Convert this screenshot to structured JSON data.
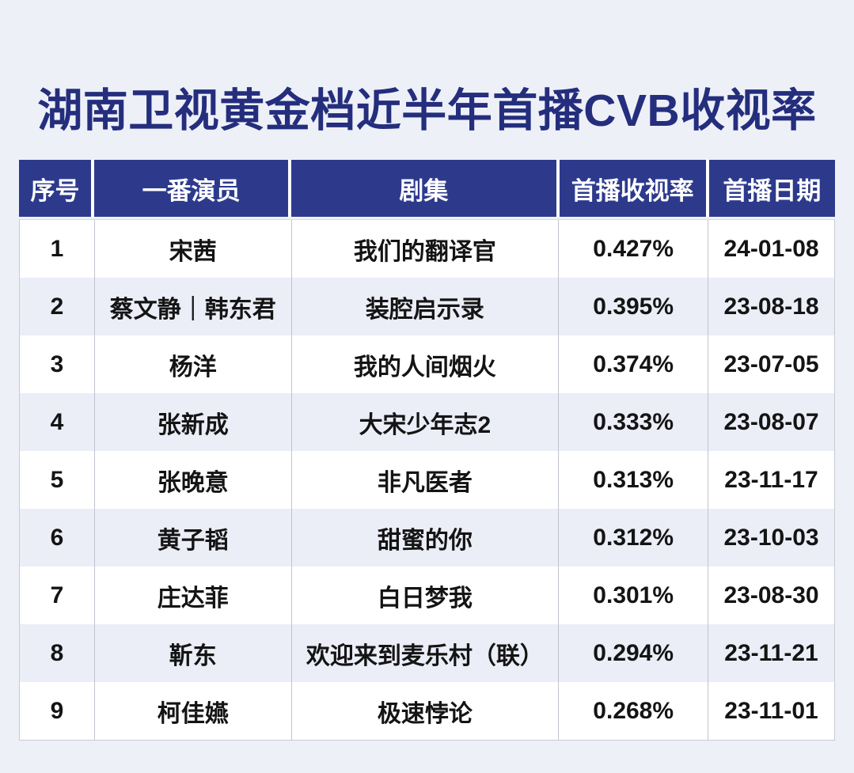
{
  "title": {
    "text": "湖南卫视黄金档近半年首播CVB收视率"
  },
  "table": {
    "headers": {
      "rank": "序号",
      "actor": "一番演员",
      "drama": "剧集",
      "rating": "首播收视率",
      "date": "首播日期"
    },
    "rows": [
      {
        "rank": "1",
        "actor": "宋茜",
        "drama": "我们的翻译官",
        "rating": "0.427%",
        "date": "24-01-08"
      },
      {
        "rank": "2",
        "actor": "蔡文静｜韩东君",
        "drama": "装腔启示录",
        "rating": "0.395%",
        "date": "23-08-18"
      },
      {
        "rank": "3",
        "actor": "杨洋",
        "drama": "我的人间烟火",
        "rating": "0.374%",
        "date": "23-07-05"
      },
      {
        "rank": "4",
        "actor": "张新成",
        "drama": "大宋少年志2",
        "rating": "0.333%",
        "date": "23-08-07"
      },
      {
        "rank": "5",
        "actor": "张晚意",
        "drama": "非凡医者",
        "rating": "0.313%",
        "date": "23-11-17"
      },
      {
        "rank": "6",
        "actor": "黄子韬",
        "drama": "甜蜜的你",
        "rating": "0.312%",
        "date": "23-10-03"
      },
      {
        "rank": "7",
        "actor": "庄达菲",
        "drama": "白日梦我",
        "rating": "0.301%",
        "date": "23-08-30"
      },
      {
        "rank": "8",
        "actor": "靳东",
        "drama": "欢迎来到麦乐村（联）",
        "rating": "0.294%",
        "date": "23-11-21"
      },
      {
        "rank": "9",
        "actor": "柯佳嬿",
        "drama": "极速悖论",
        "rating": "0.268%",
        "date": "23-11-01"
      }
    ]
  },
  "colors": {
    "page_bg": "#eef0f8",
    "title_text": "#242e7d",
    "header_bg": "#2d3a8c",
    "header_text": "#ffffff",
    "row_bg": "#ffffff",
    "row_alt_bg": "#ebedf7",
    "body_text": "#141414",
    "border": "#c2c3ce"
  },
  "chart_data": {
    "type": "table",
    "title": "湖南卫视黄金档近半年首播CVB收视率",
    "columns": [
      "序号",
      "一番演员",
      "剧集",
      "首播收视率",
      "首播日期"
    ],
    "rows": [
      [
        "1",
        "宋茜",
        "我们的翻译官",
        "0.427%",
        "24-01-08"
      ],
      [
        "2",
        "蔡文静｜韩东君",
        "装腔启示录",
        "0.395%",
        "23-08-18"
      ],
      [
        "3",
        "杨洋",
        "我的人间烟火",
        "0.374%",
        "23-07-05"
      ],
      [
        "4",
        "张新成",
        "大宋少年志2",
        "0.333%",
        "23-08-07"
      ],
      [
        "5",
        "张晚意",
        "非凡医者",
        "0.313%",
        "23-11-17"
      ],
      [
        "6",
        "黄子韬",
        "甜蜜的你",
        "0.312%",
        "23-10-03"
      ],
      [
        "7",
        "庄达菲",
        "白日梦我",
        "0.301%",
        "23-08-30"
      ],
      [
        "8",
        "靳东",
        "欢迎来到麦乐村（联）",
        "0.294%",
        "23-11-21"
      ],
      [
        "9",
        "柯佳嬿",
        "极速悖论",
        "0.268%",
        "23-11-01"
      ]
    ],
    "ratings_percent": [
      0.427,
      0.395,
      0.374,
      0.333,
      0.313,
      0.312,
      0.301,
      0.294,
      0.268
    ]
  }
}
